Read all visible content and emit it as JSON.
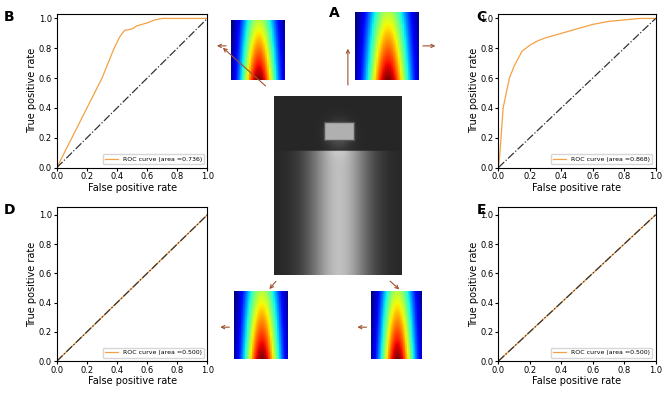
{
  "chart_data": [
    {
      "panel": "B",
      "type": "line",
      "xlabel": "False positive rate",
      "ylabel": "True positive rate",
      "xlim": [
        0.0,
        1.0
      ],
      "ylim": [
        0.0,
        1.03
      ],
      "xticks": [
        0.0,
        0.2,
        0.4,
        0.6,
        0.8,
        1.0
      ],
      "yticks": [
        0.0,
        0.2,
        0.4,
        0.6,
        0.8,
        1.0
      ],
      "legend": "lower right",
      "series": [
        {
          "name": "ROC curve (area =0.736)",
          "color": "#f5a142",
          "line_style": "solid",
          "x": [
            0.0,
            0.1,
            0.2,
            0.3,
            0.38,
            0.42,
            0.45,
            0.5,
            0.53,
            0.6,
            0.65,
            0.7,
            1.0
          ],
          "values": [
            0.0,
            0.2,
            0.4,
            0.6,
            0.8,
            0.88,
            0.92,
            0.93,
            0.95,
            0.97,
            0.99,
            1.0,
            1.0
          ]
        },
        {
          "color": "#333333",
          "line_style": "dashdot",
          "x": [
            0.0,
            1.0
          ],
          "values": [
            0.0,
            1.0
          ]
        }
      ]
    },
    {
      "panel": "C",
      "type": "line",
      "xlabel": "False positive rate",
      "ylabel": "True positive rate",
      "xlim": [
        0.0,
        1.0
      ],
      "ylim": [
        0.0,
        1.03
      ],
      "xticks": [
        0.0,
        0.2,
        0.4,
        0.6,
        0.8,
        1.0
      ],
      "yticks": [
        0.0,
        0.2,
        0.4,
        0.6,
        0.8,
        1.0
      ],
      "legend": "lower right",
      "series": [
        {
          "name": "ROC curve (area =0.868)",
          "color": "#f5a142",
          "line_style": "solid",
          "x": [
            0.0,
            0.01,
            0.02,
            0.03,
            0.05,
            0.07,
            0.1,
            0.12,
            0.15,
            0.2,
            0.25,
            0.3,
            0.4,
            0.5,
            0.6,
            0.7,
            0.8,
            0.9,
            1.0
          ],
          "values": [
            0.0,
            0.1,
            0.25,
            0.4,
            0.5,
            0.6,
            0.68,
            0.72,
            0.78,
            0.82,
            0.85,
            0.87,
            0.9,
            0.93,
            0.96,
            0.98,
            0.99,
            1.0,
            1.0
          ]
        },
        {
          "color": "#333333",
          "line_style": "dashdot",
          "x": [
            0.0,
            1.0
          ],
          "values": [
            0.0,
            1.0
          ]
        }
      ]
    },
    {
      "panel": "D",
      "type": "line",
      "xlabel": "False positive rate",
      "ylabel": "True positive rate",
      "xlim": [
        0.0,
        1.0
      ],
      "ylim": [
        0.0,
        1.05
      ],
      "xticks": [
        0.0,
        0.2,
        0.4,
        0.6,
        0.8,
        1.0
      ],
      "yticks": [
        0.0,
        0.2,
        0.4,
        0.6,
        0.8,
        1.0
      ],
      "legend": "lower right",
      "series": [
        {
          "name": "ROC curve (area =0.500)",
          "color": "#f5a142",
          "line_style": "solid",
          "x": [
            0.0,
            1.0
          ],
          "values": [
            0.0,
            1.0
          ]
        },
        {
          "color": "#333333",
          "line_style": "dashdot",
          "x": [
            0.0,
            1.0
          ],
          "values": [
            0.0,
            1.0
          ]
        }
      ]
    },
    {
      "panel": "E",
      "type": "line",
      "xlabel": "False positive rate",
      "ylabel": "True positive rate",
      "xlim": [
        0.0,
        1.0
      ],
      "ylim": [
        0.0,
        1.05
      ],
      "xticks": [
        0.0,
        0.2,
        0.4,
        0.6,
        0.8,
        1.0
      ],
      "yticks": [
        0.0,
        0.2,
        0.4,
        0.6,
        0.8,
        1.0
      ],
      "legend": "lower right",
      "series": [
        {
          "name": "ROC curve (area =0.500)",
          "color": "#f5a142",
          "line_style": "solid",
          "x": [
            0.0,
            1.0
          ],
          "values": [
            0.0,
            1.0
          ]
        },
        {
          "color": "#333333",
          "line_style": "dashdot",
          "x": [
            0.0,
            1.0
          ],
          "values": [
            0.0,
            1.0
          ]
        }
      ]
    }
  ],
  "image_panel": {
    "label": "A"
  }
}
